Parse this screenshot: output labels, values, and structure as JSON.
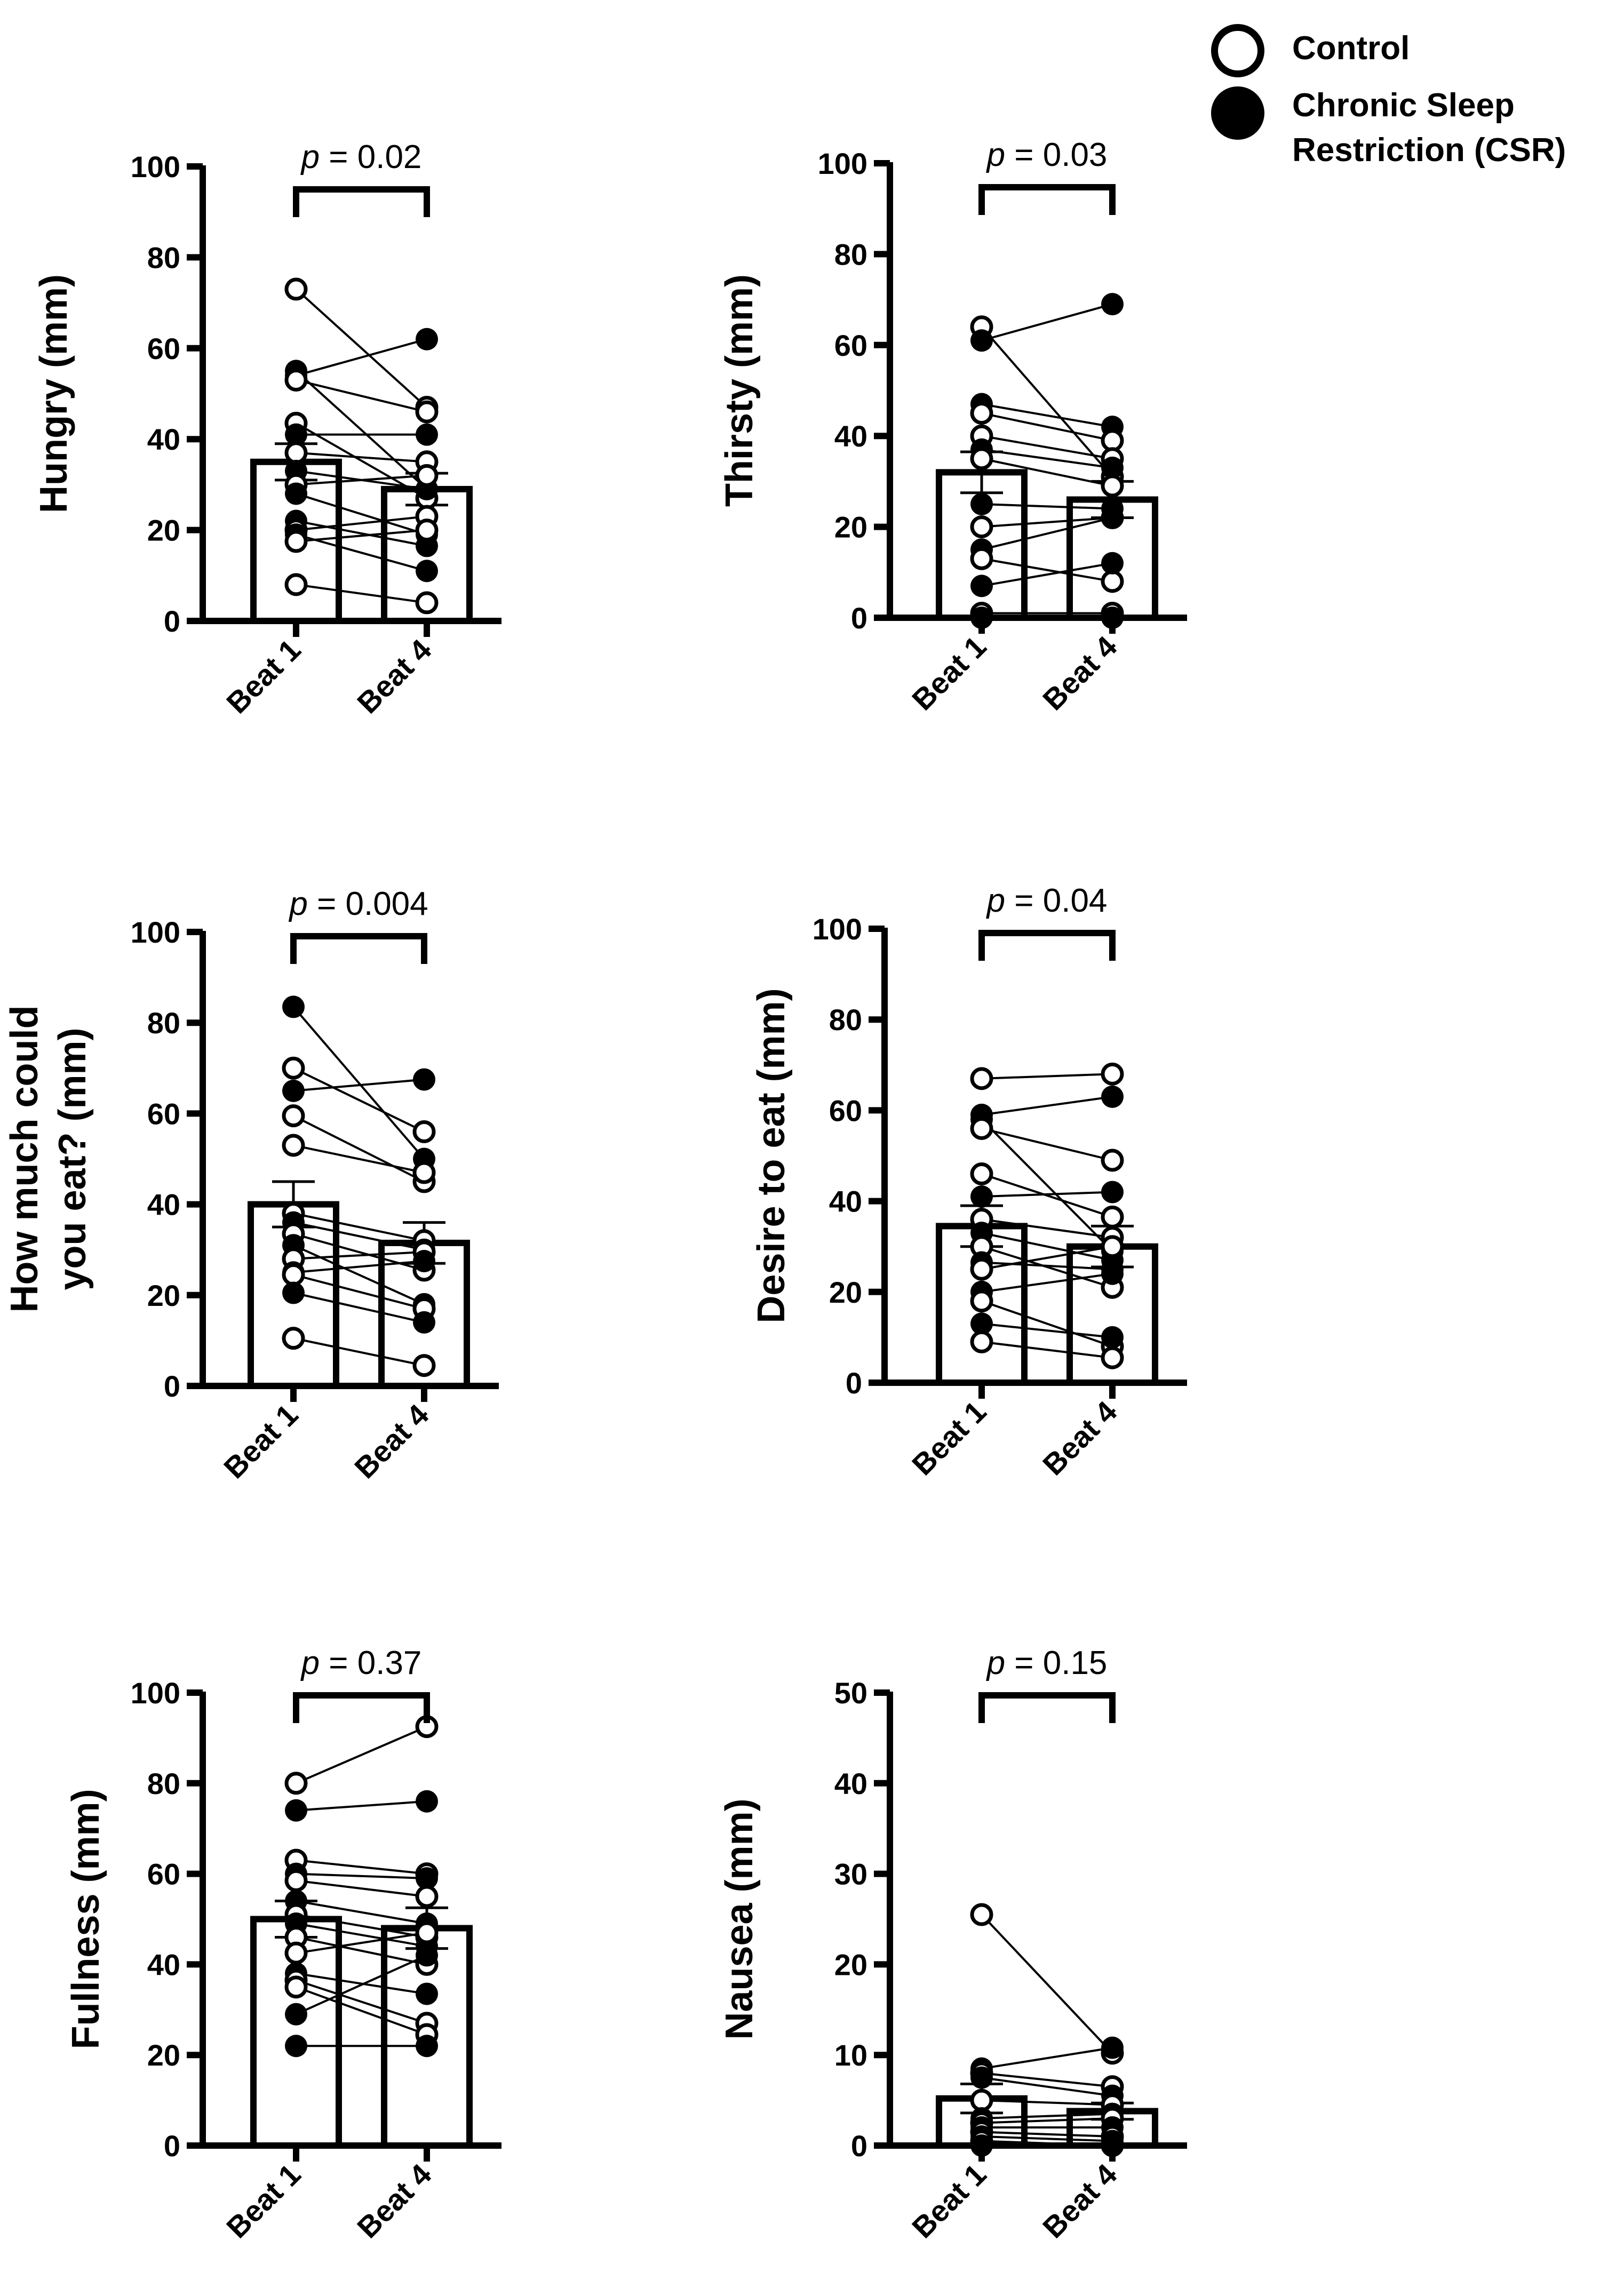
{
  "legend": {
    "control": "Control",
    "csr_line1": "Chronic Sleep",
    "csr_line2": "Restriction (CSR)"
  },
  "chart_data": [
    {
      "id": "hungry",
      "type": "bar",
      "ylabel_lines": [
        "Hungry (mm)"
      ],
      "categories": [
        "Beat 1",
        "Beat 4"
      ],
      "ylim": [
        0,
        100
      ],
      "yticks": [
        0,
        20,
        40,
        60,
        80,
        100
      ],
      "p_label": "p",
      "p_value": "= 0.02",
      "bars": [
        {
          "name": "Beat 1",
          "mean": 35,
          "sem": 4
        },
        {
          "name": "Beat 4",
          "mean": 29,
          "sem": 3.5
        }
      ],
      "subjects": [
        {
          "group": "control",
          "beat1": 73,
          "beat4": 47
        },
        {
          "group": "csr",
          "beat1": 55,
          "beat4": 29
        },
        {
          "group": "csr",
          "beat1": 54,
          "beat4": 62
        },
        {
          "group": "control",
          "beat1": 53,
          "beat4": 46
        },
        {
          "group": "control",
          "beat1": 43.5,
          "beat4": 27
        },
        {
          "group": "csr",
          "beat1": 41,
          "beat4": 41
        },
        {
          "group": "control",
          "beat1": 37,
          "beat4": 35
        },
        {
          "group": "csr",
          "beat1": 33,
          "beat4": 29
        },
        {
          "group": "control",
          "beat1": 30,
          "beat4": 32
        },
        {
          "group": "csr",
          "beat1": 28,
          "beat4": 19
        },
        {
          "group": "csr",
          "beat1": 22,
          "beat4": 16.5
        },
        {
          "group": "control",
          "beat1": 20,
          "beat4": 23
        },
        {
          "group": "csr",
          "beat1": 19,
          "beat4": 11
        },
        {
          "group": "control",
          "beat1": 17.5,
          "beat4": 20
        },
        {
          "group": "control",
          "beat1": 8,
          "beat4": 4
        }
      ]
    },
    {
      "id": "thirsty",
      "type": "bar",
      "ylabel_lines": [
        "Thirsty (mm)"
      ],
      "categories": [
        "Beat 1",
        "Beat 4"
      ],
      "ylim": [
        0,
        100
      ],
      "yticks": [
        0,
        20,
        40,
        60,
        80,
        100
      ],
      "p_label": "p",
      "p_value": "= 0.03",
      "bars": [
        {
          "name": "Beat 1",
          "mean": 32,
          "sem": 4.5
        },
        {
          "name": "Beat 4",
          "mean": 26,
          "sem": 4
        }
      ],
      "subjects": [
        {
          "group": "control",
          "beat1": 64,
          "beat4": 31
        },
        {
          "group": "csr",
          "beat1": 61,
          "beat4": 69
        },
        {
          "group": "csr",
          "beat1": 47,
          "beat4": 42
        },
        {
          "group": "control",
          "beat1": 45,
          "beat4": 39
        },
        {
          "group": "control",
          "beat1": 40,
          "beat4": 35
        },
        {
          "group": "csr",
          "beat1": 37,
          "beat4": 33
        },
        {
          "group": "control",
          "beat1": 35,
          "beat4": 29
        },
        {
          "group": "csr",
          "beat1": 25,
          "beat4": 24
        },
        {
          "group": "control",
          "beat1": 20,
          "beat4": 22
        },
        {
          "group": "csr",
          "beat1": 15,
          "beat4": 22
        },
        {
          "group": "control",
          "beat1": 13,
          "beat4": 8
        },
        {
          "group": "csr",
          "beat1": 7,
          "beat4": 12
        },
        {
          "group": "control",
          "beat1": 1,
          "beat4": 1
        },
        {
          "group": "csr",
          "beat1": 0,
          "beat4": 0
        }
      ]
    },
    {
      "id": "how-much",
      "type": "bar",
      "ylabel_lines": [
        "How much could",
        "you eat? (mm)"
      ],
      "categories": [
        "Beat 1",
        "Beat 4"
      ],
      "ylim": [
        0,
        100
      ],
      "yticks": [
        0,
        20,
        40,
        60,
        80,
        100
      ],
      "p_label": "p",
      "p_value": "= 0.004",
      "bars": [
        {
          "name": "Beat 1",
          "mean": 40,
          "sem": 5
        },
        {
          "name": "Beat 4",
          "mean": 31.5,
          "sem": 4.5
        }
      ],
      "subjects": [
        {
          "group": "csr",
          "beat1": 83.5,
          "beat4": 50
        },
        {
          "group": "control",
          "beat1": 70,
          "beat4": 56
        },
        {
          "group": "csr",
          "beat1": 65,
          "beat4": 67.5
        },
        {
          "group": "control",
          "beat1": 59.5,
          "beat4": 45
        },
        {
          "group": "control",
          "beat1": 53,
          "beat4": 47
        },
        {
          "group": "control",
          "beat1": 38,
          "beat4": 32
        },
        {
          "group": "csr",
          "beat1": 36,
          "beat4": 30
        },
        {
          "group": "control",
          "beat1": 33.5,
          "beat4": 25.5
        },
        {
          "group": "csr",
          "beat1": 31,
          "beat4": 18
        },
        {
          "group": "control",
          "beat1": 28,
          "beat4": 29.5
        },
        {
          "group": "csr",
          "beat1": 25,
          "beat4": 27.5
        },
        {
          "group": "control",
          "beat1": 24.5,
          "beat4": 17
        },
        {
          "group": "csr",
          "beat1": 20.5,
          "beat4": 14
        },
        {
          "group": "control",
          "beat1": 10.5,
          "beat4": 4.5
        }
      ]
    },
    {
      "id": "desire",
      "type": "bar",
      "ylabel_lines": [
        "Desire to eat (mm)"
      ],
      "categories": [
        "Beat 1",
        "Beat 4"
      ],
      "ylim": [
        0,
        100
      ],
      "yticks": [
        0,
        20,
        40,
        60,
        80,
        100
      ],
      "p_label": "p",
      "p_value": "= 0.04",
      "bars": [
        {
          "name": "Beat 1",
          "mean": 34.5,
          "sem": 4.5
        },
        {
          "name": "Beat 4",
          "mean": 30,
          "sem": 4.5
        }
      ],
      "subjects": [
        {
          "group": "control",
          "beat1": 67,
          "beat4": 68
        },
        {
          "group": "csr",
          "beat1": 59,
          "beat4": 63
        },
        {
          "group": "csr",
          "beat1": 58,
          "beat4": 29
        },
        {
          "group": "control",
          "beat1": 56,
          "beat4": 49
        },
        {
          "group": "control",
          "beat1": 46,
          "beat4": 36.5
        },
        {
          "group": "csr",
          "beat1": 41,
          "beat4": 42
        },
        {
          "group": "control",
          "beat1": 36,
          "beat4": 32
        },
        {
          "group": "csr",
          "beat1": 33,
          "beat4": 27
        },
        {
          "group": "control",
          "beat1": 30,
          "beat4": 21
        },
        {
          "group": "csr",
          "beat1": 26.5,
          "beat4": 25
        },
        {
          "group": "control",
          "beat1": 25,
          "beat4": 30
        },
        {
          "group": "csr",
          "beat1": 20,
          "beat4": 24
        },
        {
          "group": "control",
          "beat1": 18,
          "beat4": 8
        },
        {
          "group": "csr",
          "beat1": 13,
          "beat4": 10
        },
        {
          "group": "control",
          "beat1": 9,
          "beat4": 5.5
        }
      ]
    },
    {
      "id": "fullness",
      "type": "bar",
      "ylabel_lines": [
        "Fullness (mm)"
      ],
      "categories": [
        "Beat 1",
        "Beat 4"
      ],
      "ylim": [
        0,
        100
      ],
      "yticks": [
        0,
        20,
        40,
        60,
        80,
        100
      ],
      "p_label": "p",
      "p_value": "= 0.37",
      "bars": [
        {
          "name": "Beat 1",
          "mean": 50,
          "sem": 4
        },
        {
          "name": "Beat 4",
          "mean": 48,
          "sem": 4.5
        }
      ],
      "subjects": [
        {
          "group": "control",
          "beat1": 80,
          "beat4": 92.5
        },
        {
          "group": "csr",
          "beat1": 74,
          "beat4": 76
        },
        {
          "group": "control",
          "beat1": 63,
          "beat4": 60
        },
        {
          "group": "csr",
          "beat1": 60,
          "beat4": 59
        },
        {
          "group": "control",
          "beat1": 58.5,
          "beat4": 55
        },
        {
          "group": "csr",
          "beat1": 54,
          "beat4": 49
        },
        {
          "group": "control",
          "beat1": 51,
          "beat4": 46
        },
        {
          "group": "csr",
          "beat1": 49,
          "beat4": 44
        },
        {
          "group": "control",
          "beat1": 46,
          "beat4": 40
        },
        {
          "group": "control",
          "beat1": 42.5,
          "beat4": 47
        },
        {
          "group": "csr",
          "beat1": 38,
          "beat4": 33.5
        },
        {
          "group": "control",
          "beat1": 36.5,
          "beat4": 27
        },
        {
          "group": "control",
          "beat1": 35,
          "beat4": 24.5
        },
        {
          "group": "csr",
          "beat1": 29,
          "beat4": 42
        },
        {
          "group": "csr",
          "beat1": 22,
          "beat4": 22
        }
      ]
    },
    {
      "id": "nausea",
      "type": "bar",
      "ylabel_lines": [
        "Nausea (mm)"
      ],
      "categories": [
        "Beat 1",
        "Beat 4"
      ],
      "ylim": [
        0,
        50
      ],
      "yticks": [
        0,
        10,
        20,
        30,
        40,
        50
      ],
      "p_label": "p",
      "p_value": "= 0.15",
      "bars": [
        {
          "name": "Beat 1",
          "mean": 5.2,
          "sem": 1.6
        },
        {
          "name": "Beat 4",
          "mean": 3.8,
          "sem": 0.9
        }
      ],
      "subjects": [
        {
          "group": "control",
          "beat1": 25.5,
          "beat4": 10.2
        },
        {
          "group": "csr",
          "beat1": 8.5,
          "beat4": 10.8
        },
        {
          "group": "control",
          "beat1": 8,
          "beat4": 6.5
        },
        {
          "group": "csr",
          "beat1": 7.5,
          "beat4": 5.5
        },
        {
          "group": "control",
          "beat1": 5,
          "beat4": 4.5
        },
        {
          "group": "csr",
          "beat1": 3,
          "beat4": 3.5
        },
        {
          "group": "control",
          "beat1": 2.5,
          "beat4": 3
        },
        {
          "group": "csr",
          "beat1": 2,
          "beat4": 2
        },
        {
          "group": "control",
          "beat1": 1.5,
          "beat4": 1
        },
        {
          "group": "csr",
          "beat1": 1,
          "beat4": 0.5
        },
        {
          "group": "control",
          "beat1": 0.5,
          "beat4": 0
        },
        {
          "group": "csr",
          "beat1": 0,
          "beat4": 0
        }
      ]
    }
  ]
}
